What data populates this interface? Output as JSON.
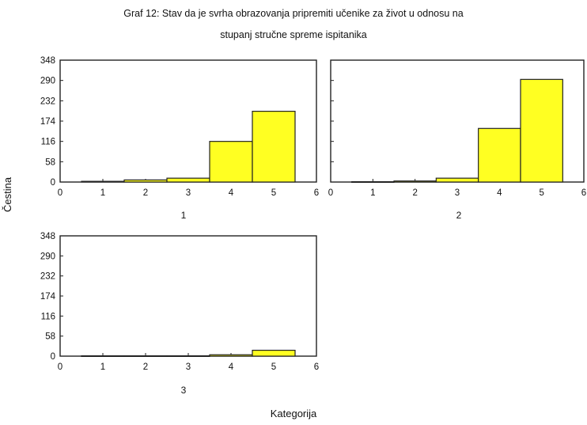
{
  "title_line1": "Graf 12: Stav da je svrha obrazovanja pripremiti učenike za život u odnosu na",
  "title_line2": "stupanj stručne spreme ispitanika",
  "ylabel": "Čestina",
  "xlabel": "Kategorija",
  "colors": {
    "bar_fill": "#ffff22",
    "bar_stroke": "#222222",
    "frame": "#222222"
  },
  "chart_data": [
    {
      "type": "bar",
      "panel_label": "1",
      "categories": [
        1,
        2,
        3,
        4,
        5
      ],
      "values": [
        2,
        6,
        11,
        116,
        202
      ],
      "xlim": [
        0,
        6
      ],
      "ylim": [
        0,
        348
      ],
      "xticks": [
        0,
        1,
        2,
        3,
        4,
        5,
        6
      ],
      "yticks": [
        0,
        58,
        116,
        174,
        232,
        290,
        348
      ]
    },
    {
      "type": "bar",
      "panel_label": "2",
      "categories": [
        1,
        2,
        3,
        4,
        5
      ],
      "values": [
        1,
        3,
        11,
        153,
        293
      ],
      "xlim": [
        0,
        6
      ],
      "ylim": [
        0,
        348
      ],
      "xticks": [
        0,
        1,
        2,
        3,
        4,
        5,
        6
      ],
      "yticks": [
        0,
        58,
        116,
        174,
        232,
        290,
        348
      ]
    },
    {
      "type": "bar",
      "panel_label": "3",
      "categories": [
        1,
        2,
        3,
        4,
        5
      ],
      "values": [
        1,
        1,
        1,
        4,
        17
      ],
      "xlim": [
        0,
        6
      ],
      "ylim": [
        0,
        348
      ],
      "xticks": [
        0,
        1,
        2,
        3,
        4,
        5,
        6
      ],
      "yticks": [
        0,
        58,
        116,
        174,
        232,
        290,
        348
      ]
    }
  ]
}
